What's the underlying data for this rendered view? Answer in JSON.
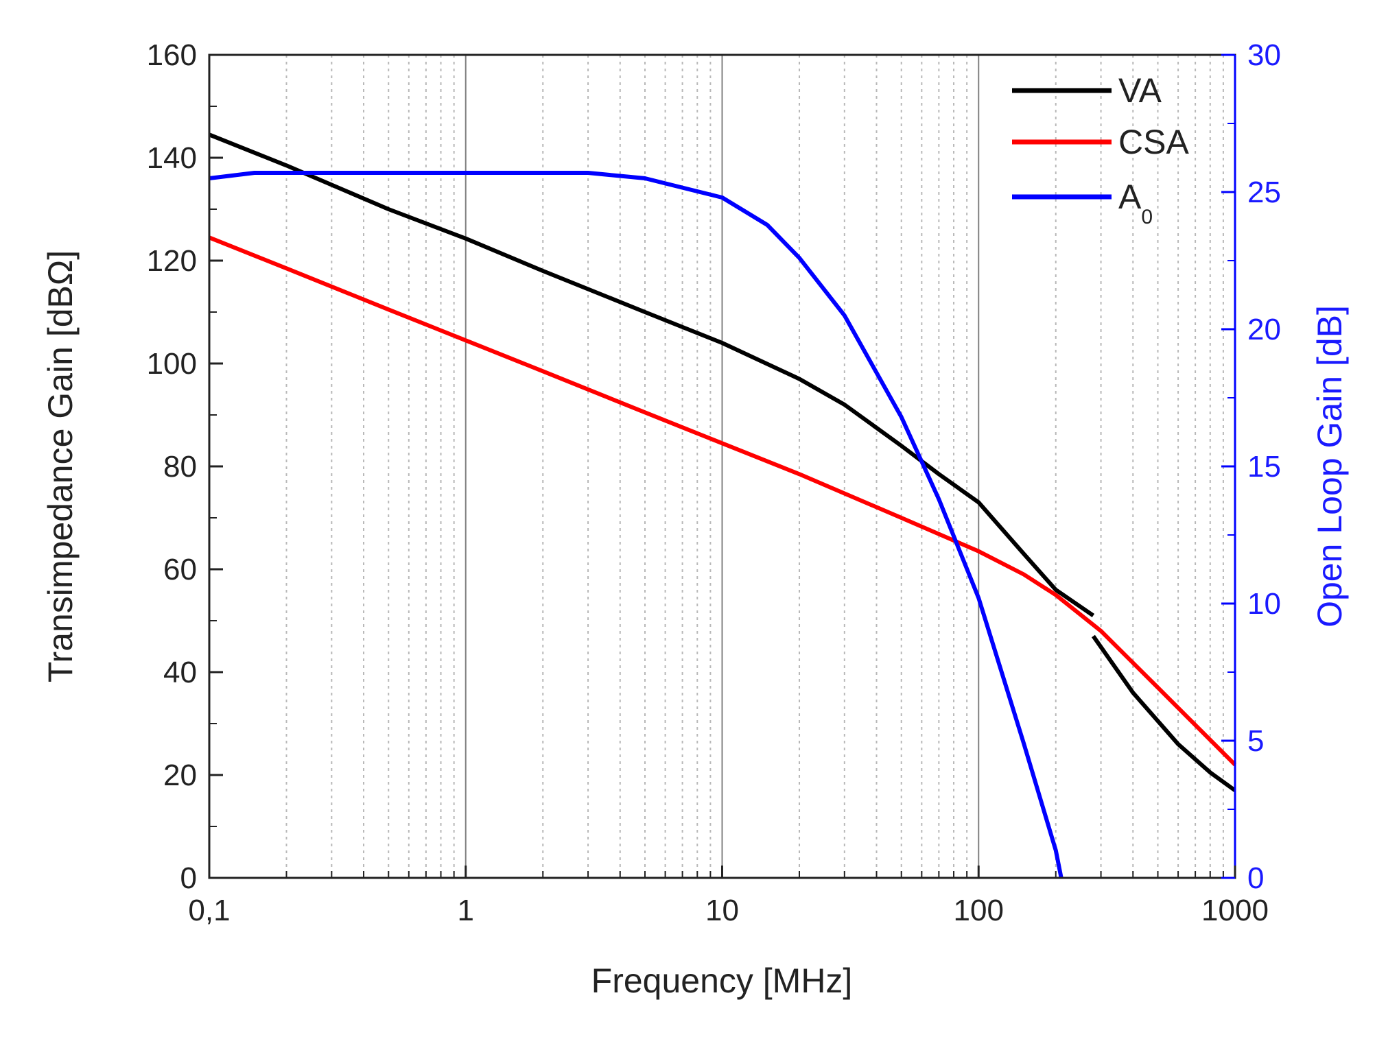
{
  "chart_data": {
    "type": "line",
    "title": "",
    "xlabel": "Frequency [MHz]",
    "ylabel": "Transimpedance Gain [dBΩ]",
    "y2label": "Open Loop Gain [dB]",
    "xscale": "log",
    "xlim": [
      0.1,
      1000
    ],
    "ylim": [
      0,
      160
    ],
    "y2lim": [
      0,
      30
    ],
    "x_ticks": [
      {
        "value": 0.1,
        "label": "0,1"
      },
      {
        "value": 1,
        "label": "1"
      },
      {
        "value": 10,
        "label": "10"
      },
      {
        "value": 100,
        "label": "100"
      },
      {
        "value": 1000,
        "label": "1000"
      }
    ],
    "y_ticks": [
      {
        "value": 0,
        "label": "0"
      },
      {
        "value": 20,
        "label": "20"
      },
      {
        "value": 40,
        "label": "40"
      },
      {
        "value": 60,
        "label": "60"
      },
      {
        "value": 80,
        "label": "80"
      },
      {
        "value": 100,
        "label": "100"
      },
      {
        "value": 120,
        "label": "120"
      },
      {
        "value": 140,
        "label": "140"
      },
      {
        "value": 160,
        "label": "160"
      }
    ],
    "y2_ticks": [
      {
        "value": 0,
        "label": "0"
      },
      {
        "value": 5,
        "label": "5"
      },
      {
        "value": 10,
        "label": "10"
      },
      {
        "value": 15,
        "label": "15"
      },
      {
        "value": 20,
        "label": "20"
      },
      {
        "value": 25,
        "label": "25"
      },
      {
        "value": 30,
        "label": "30"
      }
    ],
    "grid": "vertical, log minor dashed",
    "legend_position": "top-right",
    "series": [
      {
        "name": "VA",
        "axis": "left",
        "color": "#000000",
        "x": [
          0.1,
          0.2,
          0.5,
          1,
          2,
          5,
          10,
          20,
          30,
          50,
          70,
          100,
          150,
          200,
          280
        ],
        "y": [
          144.5,
          138.5,
          130,
          124.3,
          118,
          110,
          104,
          97,
          92,
          84,
          78.5,
          73,
          63,
          56,
          51
        ]
      },
      {
        "name": "",
        "axis": "left",
        "color": "#000000",
        "x": [
          280,
          400,
          600,
          800,
          1000
        ],
        "y": [
          47,
          36,
          26,
          20.5,
          17
        ]
      },
      {
        "name": "CSA",
        "axis": "left",
        "color": "#ff0000",
        "x": [
          0.1,
          0.2,
          0.5,
          1,
          2,
          5,
          10,
          20,
          50,
          100,
          150,
          200,
          300,
          500,
          1000
        ],
        "y": [
          124.5,
          118.5,
          110.5,
          104.5,
          98.5,
          90.5,
          84.5,
          78.5,
          70,
          63.5,
          59,
          55,
          48,
          37,
          22
        ]
      },
      {
        "name": "A0",
        "axis": "right",
        "color": "#0000ff",
        "x": [
          0.1,
          0.15,
          1,
          3,
          5,
          10,
          15,
          20,
          30,
          50,
          70,
          100,
          150,
          200,
          210
        ],
        "y": [
          25.5,
          25.7,
          25.7,
          25.7,
          25.5,
          24.8,
          23.8,
          22.6,
          20.5,
          16.8,
          13.8,
          10.2,
          4.9,
          1.0,
          0
        ]
      }
    ],
    "legend": [
      {
        "label": "VA",
        "color": "#000000"
      },
      {
        "label": "CSA",
        "color": "#ff0000"
      },
      {
        "label": "A",
        "subscript": "0",
        "color": "#0000ff"
      }
    ]
  }
}
